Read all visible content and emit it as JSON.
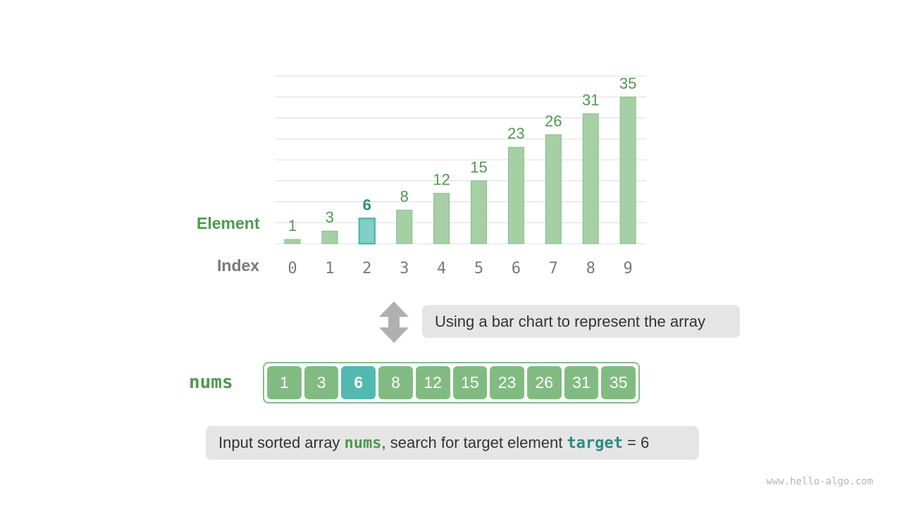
{
  "labels": {
    "element": "Element",
    "index": "Index",
    "array_name": "nums"
  },
  "chart_data": {
    "type": "bar",
    "categories": [
      "0",
      "1",
      "2",
      "3",
      "4",
      "5",
      "6",
      "7",
      "8",
      "9"
    ],
    "values": [
      1,
      3,
      6,
      8,
      12,
      15,
      23,
      26,
      31,
      35
    ],
    "highlight_index": 2,
    "ylim": [
      0,
      40
    ],
    "grid": true,
    "colors": {
      "bar": "#a6cfa6",
      "bar_border": "#86bd86",
      "highlight": "#84cfc4",
      "highlight_border": "#52b9b0",
      "label": "#4e9a4e",
      "highlight_label": "#2e8b84",
      "index": "#7a7a7a"
    }
  },
  "array": {
    "values": [
      "1",
      "3",
      "6",
      "8",
      "12",
      "15",
      "23",
      "26",
      "31",
      "35"
    ],
    "highlight_index": 2
  },
  "arrow_icon": "double-vertical-arrow",
  "caption1": "Using a bar chart to represent the array",
  "caption2": {
    "prefix": "Input sorted array ",
    "nums": "nums",
    "middle": ", search for target element ",
    "target": "target",
    "suffix": " = 6"
  },
  "watermark": "www.hello-algo.com"
}
